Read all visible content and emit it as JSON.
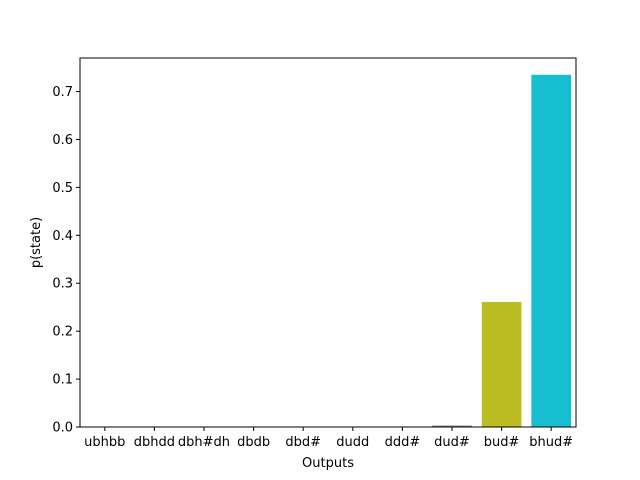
{
  "chart_data": {
    "type": "bar",
    "title": "",
    "xlabel": "Outputs",
    "ylabel": "p(state)",
    "categories": [
      "ubhbb",
      "dbhdd",
      "dbh#dh",
      "dbdb",
      "dbd#",
      "dudd",
      "ddd#",
      "dud#",
      "bud#",
      "bhud#"
    ],
    "values": [
      0.0,
      0.0,
      0.0,
      0.0,
      0.0,
      0.0,
      0.0,
      0.003,
      0.261,
      0.735
    ],
    "colors": [
      "#1f77b4",
      "#ff7f0e",
      "#2ca02c",
      "#d62728",
      "#9467bd",
      "#8c564b",
      "#e377c2",
      "#7f7f7f",
      "#bcbd22",
      "#17becf"
    ],
    "ylim": [
      0,
      0.77
    ],
    "yticks": [
      0.0,
      0.1,
      0.2,
      0.3,
      0.4,
      0.5,
      0.6,
      0.7
    ],
    "ytick_labels": [
      "0.0",
      "0.1",
      "0.2",
      "0.3",
      "0.4",
      "0.5",
      "0.6",
      "0.7"
    ],
    "grid": false,
    "legend": "none"
  }
}
